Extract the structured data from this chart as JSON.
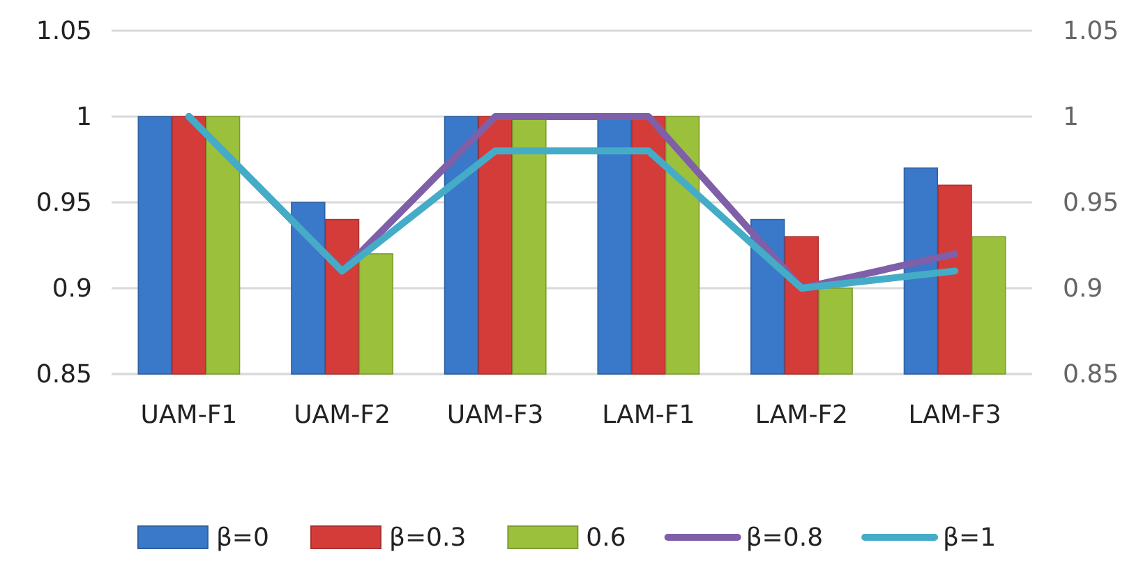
{
  "chart_data": {
    "type": "bar",
    "categories": [
      "UAM-F1",
      "UAM-F2",
      "UAM-F3",
      "LAM-F1",
      "LAM-F2",
      "LAM-F3"
    ],
    "series": [
      {
        "name": "β=0",
        "color": "#3a78c9",
        "values": [
          1,
          0.95,
          1,
          1,
          0.94,
          0.97
        ]
      },
      {
        "name": "β=0.3",
        "color": "#d43c3a",
        "values": [
          1,
          0.94,
          1,
          1,
          0.93,
          0.96
        ]
      },
      {
        "name": "0.6",
        "color": "#9bc13c",
        "values": [
          1,
          0.92,
          1,
          1,
          0.9,
          0.93
        ]
      },
      {
        "name": "β=0.8",
        "type": "line",
        "color": "#7f5fa8",
        "values": [
          1,
          0.91,
          1,
          1,
          0.9,
          0.92
        ]
      },
      {
        "name": "β=1",
        "type": "line",
        "color": "#45acc8",
        "values": [
          1,
          0.91,
          0.98,
          0.98,
          0.9,
          0.91
        ]
      }
    ],
    "ylim": [
      0.85,
      1.05
    ],
    "yticks": [
      0.85,
      0.9,
      0.95,
      1,
      1.05
    ],
    "y2lim": [
      0.85,
      1.05
    ],
    "y2ticks": [
      0.85,
      0.9,
      0.95,
      1,
      1.05
    ],
    "grid": "y",
    "legend": "bottom",
    "marker": "none",
    "line_style": "solid"
  }
}
